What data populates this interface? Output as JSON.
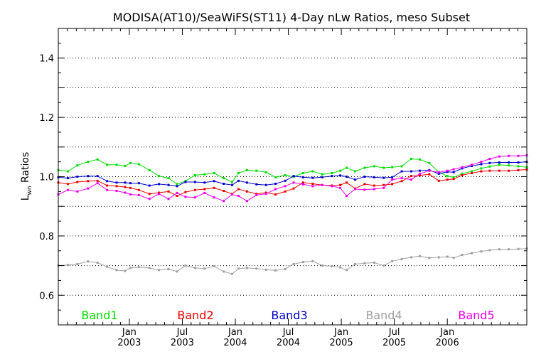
{
  "chart_data": {
    "type": "line",
    "title": "MODISA(AT10)/SeaWiFS(ST11) 4-Day nLw Ratios, meso Subset",
    "ylabel_main": "L",
    "ylabel_sub": "wn",
    "ylabel_rest": " Ratios",
    "xlabel": "",
    "ylim": [
      0.5,
      1.5
    ],
    "xlim": [
      2002.33,
      2006.75
    ],
    "grid": "horizontal dotted",
    "legend_placement": "bottom",
    "yticks": [
      {
        "v": 0.6,
        "label": "0.6"
      },
      {
        "v": 0.8,
        "label": "0.8"
      },
      {
        "v": 1.0,
        "label": "1.0"
      },
      {
        "v": 1.2,
        "label": "1.2"
      },
      {
        "v": 1.4,
        "label": "1.4"
      }
    ],
    "ygrid": [
      0.6,
      0.7,
      0.8,
      0.9,
      1.0,
      1.1,
      1.2,
      1.3,
      1.4
    ],
    "xticks": [
      {
        "v": 2003.0,
        "mon": "Jan",
        "yr": "2003"
      },
      {
        "v": 2003.5,
        "mon": "Jul",
        "yr": "2003"
      },
      {
        "v": 2004.0,
        "mon": "Jan",
        "yr": "2004"
      },
      {
        "v": 2004.5,
        "mon": "Jul",
        "yr": "2004"
      },
      {
        "v": 2005.0,
        "mon": "Jan",
        "yr": "2005"
      },
      {
        "v": 2005.5,
        "mon": "Jul",
        "yr": "2005"
      },
      {
        "v": 2006.0,
        "mon": "Jan",
        "yr": "2006"
      }
    ],
    "minor_xticks": [
      2002.416,
      2002.5,
      2002.583,
      2002.666,
      2002.75,
      2002.833,
      2002.916,
      2003.083,
      2003.166,
      2003.25,
      2003.333,
      2003.416,
      2003.583,
      2003.666,
      2003.75,
      2003.833,
      2003.916,
      2004.083,
      2004.166,
      2004.25,
      2004.333,
      2004.416,
      2004.583,
      2004.666,
      2004.75,
      2004.833,
      2004.916,
      2005.083,
      2005.166,
      2005.25,
      2005.333,
      2005.416,
      2005.583,
      2005.666,
      2005.75,
      2005.833,
      2005.916,
      2006.083,
      2006.166,
      2006.25,
      2006.333,
      2006.416,
      2006.5,
      2006.583,
      2006.666
    ],
    "x": [
      2002.33,
      2002.42,
      2002.51,
      2002.61,
      2002.7,
      2002.79,
      2002.88,
      2002.96,
      2003.01,
      2003.09,
      2003.19,
      2003.28,
      2003.37,
      2003.45,
      2003.53,
      2003.62,
      2003.71,
      2003.8,
      2003.89,
      2003.97,
      2004.03,
      2004.11,
      2004.2,
      2004.29,
      2004.38,
      2004.47,
      2004.55,
      2004.64,
      2004.73,
      2004.82,
      2004.91,
      2004.99,
      2005.05,
      2005.13,
      2005.22,
      2005.31,
      2005.4,
      2005.48,
      2005.57,
      2005.66,
      2005.74,
      2005.83,
      2005.92,
      2006.0,
      2006.06,
      2006.14,
      2006.23,
      2006.32,
      2006.4,
      2006.49,
      2006.58,
      2006.67,
      2006.75
    ],
    "series": [
      {
        "name": "Band1",
        "color": "#00dd00",
        "values": [
          1.022,
          1.018,
          1.038,
          1.05,
          1.058,
          1.04,
          1.04,
          1.036,
          1.046,
          1.042,
          1.022,
          1.002,
          0.995,
          0.975,
          0.985,
          1.005,
          1.008,
          1.012,
          0.995,
          0.982,
          1.012,
          1.022,
          1.02,
          1.015,
          0.998,
          1.005,
          1.0,
          1.012,
          1.018,
          1.008,
          1.012,
          1.02,
          1.03,
          1.018,
          1.03,
          1.035,
          1.03,
          1.032,
          1.035,
          1.06,
          1.058,
          1.046,
          1.015,
          1.002,
          0.998,
          1.01,
          1.018,
          1.028,
          1.034,
          1.04,
          1.038,
          1.035,
          1.032
        ]
      },
      {
        "name": "Band2",
        "color": "#ee0000",
        "values": [
          0.98,
          0.975,
          0.982,
          0.985,
          0.986,
          0.97,
          0.968,
          0.965,
          0.962,
          0.955,
          0.942,
          0.946,
          0.95,
          0.935,
          0.948,
          0.955,
          0.958,
          0.962,
          0.952,
          0.942,
          0.958,
          0.95,
          0.942,
          0.946,
          0.94,
          0.95,
          0.96,
          0.98,
          0.976,
          0.972,
          0.97,
          0.972,
          0.98,
          0.96,
          0.975,
          0.97,
          0.972,
          0.975,
          0.985,
          1.002,
          1.004,
          1.008,
          0.986,
          0.99,
          0.992,
          1.005,
          1.012,
          1.018,
          1.02,
          1.02,
          1.02,
          1.022,
          1.024
        ]
      },
      {
        "name": "Band3",
        "color": "#0000cc",
        "values": [
          0.998,
          0.995,
          1.0,
          1.002,
          1.002,
          0.985,
          0.98,
          0.98,
          0.978,
          0.978,
          0.97,
          0.975,
          0.972,
          0.968,
          0.982,
          0.982,
          0.98,
          0.985,
          0.976,
          0.972,
          0.986,
          0.98,
          0.974,
          0.972,
          0.976,
          0.986,
          1.002,
          0.998,
          0.996,
          0.998,
          1.002,
          1.004,
          1.0,
          0.99,
          1.0,
          0.998,
          0.996,
          0.998,
          1.018,
          1.018,
          1.02,
          1.022,
          1.01,
          1.016,
          1.015,
          1.028,
          1.036,
          1.042,
          1.046,
          1.048,
          1.048,
          1.048,
          1.05
        ]
      },
      {
        "name": "Band4",
        "color": "#a0a0a0",
        "values": [
          0.7,
          0.702,
          0.705,
          0.714,
          0.71,
          0.696,
          0.685,
          0.682,
          0.692,
          0.695,
          0.692,
          0.685,
          0.688,
          0.68,
          0.7,
          0.692,
          0.69,
          0.698,
          0.68,
          0.672,
          0.69,
          0.692,
          0.69,
          0.686,
          0.684,
          0.688,
          0.705,
          0.712,
          0.715,
          0.7,
          0.698,
          0.694,
          0.685,
          0.705,
          0.708,
          0.71,
          0.7,
          0.715,
          0.722,
          0.728,
          0.732,
          0.726,
          0.728,
          0.73,
          0.726,
          0.736,
          0.742,
          0.748,
          0.752,
          0.755,
          0.755,
          0.756,
          0.757
        ]
      },
      {
        "name": "Band5",
        "color": "#ee00ee",
        "values": [
          0.94,
          0.955,
          0.95,
          0.96,
          0.978,
          0.955,
          0.952,
          0.946,
          0.94,
          0.938,
          0.925,
          0.942,
          0.925,
          0.945,
          0.932,
          0.93,
          0.945,
          0.93,
          0.918,
          0.94,
          0.935,
          0.918,
          0.938,
          0.942,
          0.958,
          0.968,
          0.98,
          0.974,
          0.968,
          0.972,
          0.968,
          0.962,
          0.935,
          0.958,
          0.956,
          0.958,
          0.962,
          0.99,
          0.995,
          0.99,
          1.01,
          1.02,
          1.015,
          1.02,
          1.025,
          1.032,
          1.04,
          1.05,
          1.06,
          1.068,
          1.07,
          1.07,
          1.072
        ]
      }
    ]
  }
}
